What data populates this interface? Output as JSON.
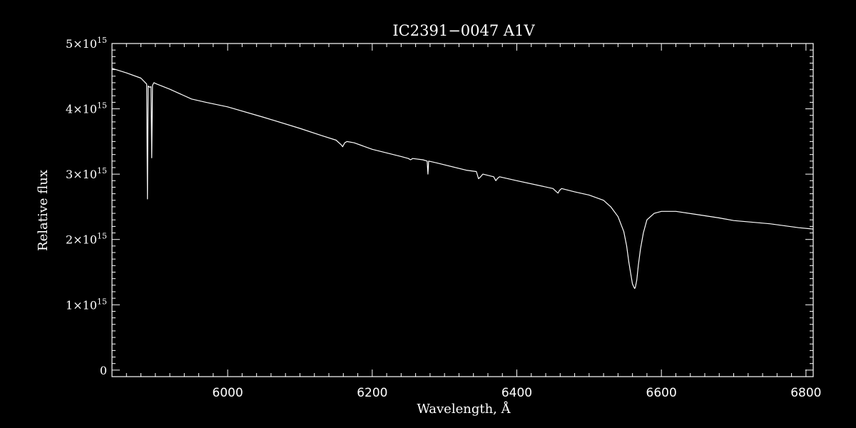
{
  "chart_data": {
    "type": "line",
    "title": "IC2391−0047  A1V",
    "xlabel": "Wavelength, Å",
    "ylabel": "Relative flux",
    "xlim": [
      5840,
      6810
    ],
    "ylim": [
      -100000000000000.0,
      5000000000000000.0
    ],
    "x_ticks": [
      {
        "value": 6000,
        "label": "6000"
      },
      {
        "value": 6200,
        "label": "6200"
      },
      {
        "value": 6400,
        "label": "6400"
      },
      {
        "value": 6600,
        "label": "6600"
      },
      {
        "value": 6800,
        "label": "6800"
      }
    ],
    "y_ticks": [
      {
        "value": 0,
        "mantissa": "0",
        "exponent": ""
      },
      {
        "value": 1000000000000000.0,
        "mantissa": "1×10",
        "exponent": "15"
      },
      {
        "value": 2000000000000000.0,
        "mantissa": "2×10",
        "exponent": "15"
      },
      {
        "value": 3000000000000000.0,
        "mantissa": "3×10",
        "exponent": "15"
      },
      {
        "value": 4000000000000000.0,
        "mantissa": "4×10",
        "exponent": "15"
      },
      {
        "value": 5000000000000000.0,
        "mantissa": "5×10",
        "exponent": "15"
      }
    ],
    "grid": false,
    "series": [
      {
        "color": "#ffffff",
        "x": [
          5840,
          5860,
          5880,
          5888,
          5889,
          5890,
          5892,
          5894,
          5895,
          5896,
          5898,
          5902,
          5920,
          5950,
          5970,
          6000,
          6050,
          6100,
          6130,
          6150,
          6157,
          6159,
          6162,
          6165,
          6175,
          6200,
          6240,
          6250,
          6253,
          6256,
          6270,
          6276,
          6277,
          6278,
          6290,
          6330,
          6344,
          6347,
          6350,
          6353,
          6368,
          6371,
          6373,
          6376,
          6400,
          6450,
          6455,
          6457,
          6459,
          6462,
          6480,
          6500,
          6520,
          6530,
          6540,
          6548,
          6552,
          6555,
          6558,
          6560,
          6562,
          6563,
          6564,
          6566,
          6568,
          6571,
          6575,
          6580,
          6590,
          6600,
          6620,
          6650,
          6680,
          6700,
          6750,
          6790,
          6810
        ],
        "y": [
          4620000000000000.0,
          4550000000000000.0,
          4470000000000000.0,
          4380000000000000.0,
          2620000000000000.0,
          4350000000000000.0,
          4330000000000000.0,
          4340000000000000.0,
          3250000000000000.0,
          4360000000000000.0,
          4400000000000000.0,
          4380000000000000.0,
          4300000000000000.0,
          4150000000000000.0,
          4100000000000000.0,
          4030000000000000.0,
          3870000000000000.0,
          3700000000000000.0,
          3590000000000000.0,
          3520000000000000.0,
          3450000000000000.0,
          3420000000000000.0,
          3480000000000000.0,
          3500000000000000.0,
          3480000000000000.0,
          3380000000000000.0,
          3270000000000000.0,
          3240000000000000.0,
          3220000000000000.0,
          3240000000000000.0,
          3220000000000000.0,
          3200000000000000.0,
          3000000000000000.0,
          3200000000000000.0,
          3170000000000000.0,
          3060000000000000.0,
          3040000000000000.0,
          2930000000000000.0,
          2960000000000000.0,
          3000000000000000.0,
          2960000000000000.0,
          2900000000000000.0,
          2930000000000000.0,
          2960000000000000.0,
          2900000000000000.0,
          2780000000000000.0,
          2730000000000000.0,
          2710000000000000.0,
          2750000000000000.0,
          2780000000000000.0,
          2730000000000000.0,
          2680000000000000.0,
          2600000000000000.0,
          2500000000000000.0,
          2350000000000000.0,
          2120000000000000.0,
          1900000000000000.0,
          1650000000000000.0,
          1450000000000000.0,
          1320000000000000.0,
          1270000000000000.0,
          1250000000000000.0,
          1270000000000000.0,
          1380000000000000.0,
          1600000000000000.0,
          1850000000000000.0,
          2100000000000000.0,
          2300000000000000.0,
          2400000000000000.0,
          2430000000000000.0,
          2430000000000000.0,
          2380000000000000.0,
          2330000000000000.0,
          2290000000000000.0,
          2240000000000000.0,
          2180000000000000.0,
          2160000000000000.0
        ]
      }
    ]
  }
}
